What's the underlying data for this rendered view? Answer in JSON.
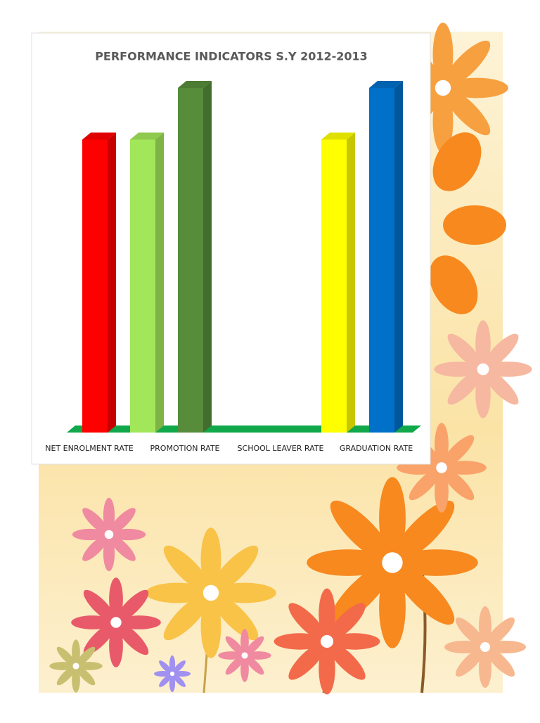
{
  "chart_data": {
    "type": "bar3d",
    "title": "PERFORMANCE INDICATORS  S.Y 2012-2013",
    "categories": [
      "NET ENROLMENT RATE",
      null,
      "PROMOTION RATE",
      null,
      "SCHOOL LEAVER RATE",
      null,
      "GRADUATION RATE"
    ],
    "values": [
      85,
      85,
      100,
      null,
      null,
      85,
      100
    ],
    "colors": [
      "#ff0000",
      "#a2e65a",
      "#568c3a",
      "#888888",
      "#888888",
      "#ffff00",
      "#0070c8"
    ],
    "ylim": [
      0,
      100
    ],
    "floor_color": "#10a84a"
  }
}
